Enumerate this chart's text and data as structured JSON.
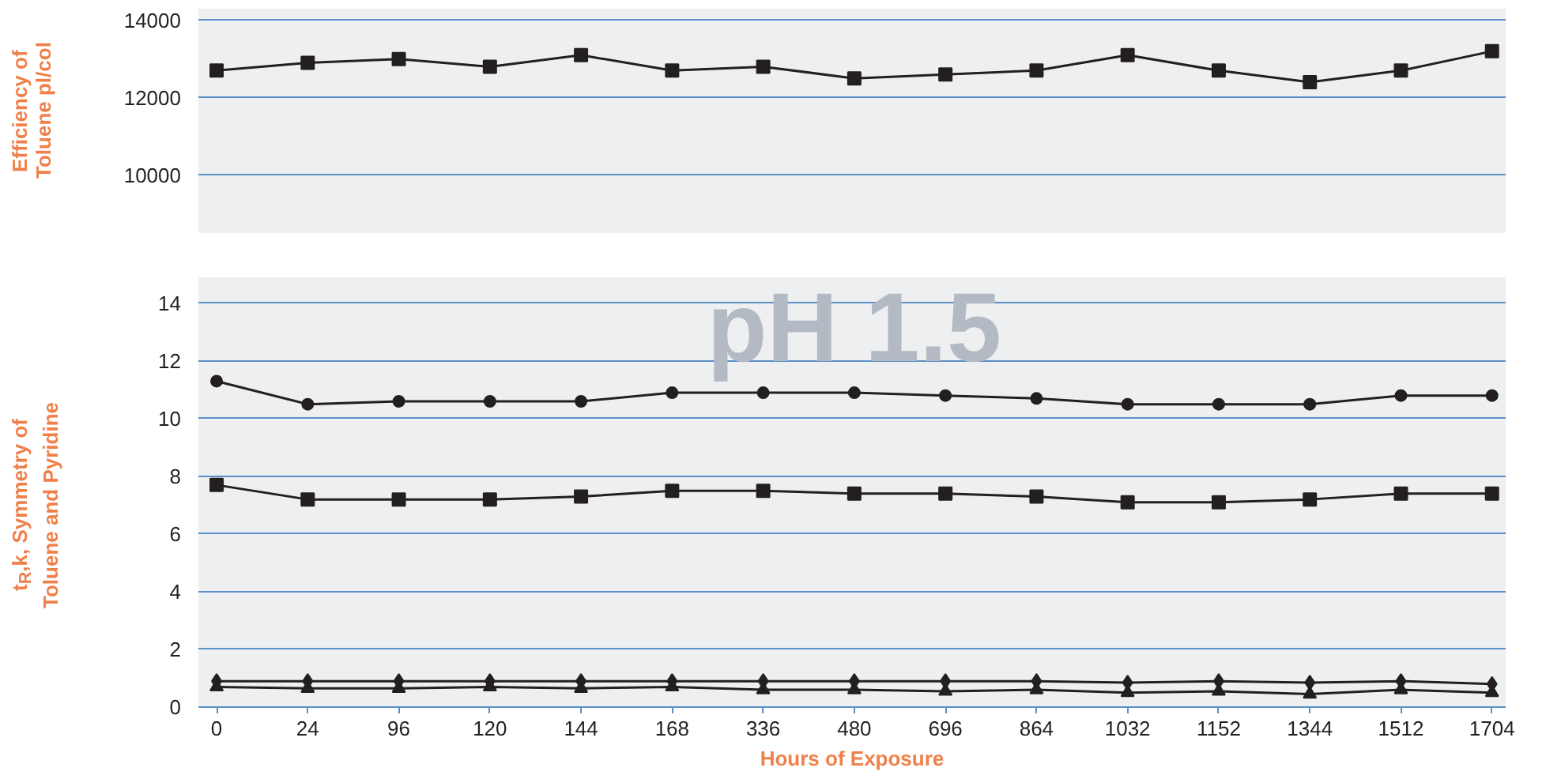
{
  "chart_data": [
    {
      "type": "line",
      "ylabel": "Efficiency of\nToluene pl/col",
      "categories": [
        "0",
        "24",
        "96",
        "120",
        "144",
        "168",
        "336",
        "480",
        "696",
        "864",
        "1032",
        "1152",
        "1344",
        "1512",
        "1704"
      ],
      "ylim": [
        8500,
        14300
      ],
      "yticks": [
        10000,
        12000,
        14000
      ],
      "grid": "y",
      "tick_labels": "y",
      "marker": "square",
      "series": [
        {
          "color": "#231f20",
          "values": [
            12700,
            12900,
            13000,
            12800,
            13100,
            12700,
            12800,
            12500,
            12600,
            12700,
            13100,
            12700,
            12400,
            12700,
            13200
          ]
        }
      ]
    },
    {
      "type": "line",
      "xlabel": "Hours of Exposure",
      "ylabel": "t$_{R}$,k, Symmetry of\nToluene and Pyridine",
      "annotations": [
        "pH 1.5"
      ],
      "categories": [
        "0",
        "24",
        "96",
        "120",
        "144",
        "168",
        "336",
        "480",
        "696",
        "864",
        "1032",
        "1152",
        "1344",
        "1512",
        "1704"
      ],
      "ylim": [
        0,
        14.9
      ],
      "yticks": [
        0,
        2,
        4,
        6,
        8,
        10,
        12,
        14
      ],
      "grid": "y",
      "series": [
        {
          "color": "#231f20",
          "marker": "circle",
          "values": [
            11.3,
            10.5,
            10.6,
            10.6,
            10.6,
            10.9,
            10.9,
            10.9,
            10.8,
            10.7,
            10.5,
            10.5,
            10.5,
            10.8,
            10.8
          ]
        },
        {
          "color": "#231f20",
          "marker": "square",
          "values": [
            7.7,
            7.2,
            7.2,
            7.2,
            7.3,
            7.5,
            7.5,
            7.4,
            7.4,
            7.3,
            7.1,
            7.1,
            7.2,
            7.4,
            7.4
          ]
        },
        {
          "color": "#231f20",
          "marker": "diamond",
          "values": [
            0.9,
            0.9,
            0.9,
            0.9,
            0.9,
            0.9,
            0.9,
            0.9,
            0.9,
            0.9,
            0.85,
            0.9,
            0.85,
            0.9,
            0.8
          ]
        },
        {
          "color": "#231f20",
          "marker": "triangle",
          "values": [
            0.7,
            0.65,
            0.65,
            0.7,
            0.65,
            0.7,
            0.6,
            0.6,
            0.55,
            0.6,
            0.5,
            0.55,
            0.45,
            0.6,
            0.5
          ]
        }
      ]
    }
  ]
}
